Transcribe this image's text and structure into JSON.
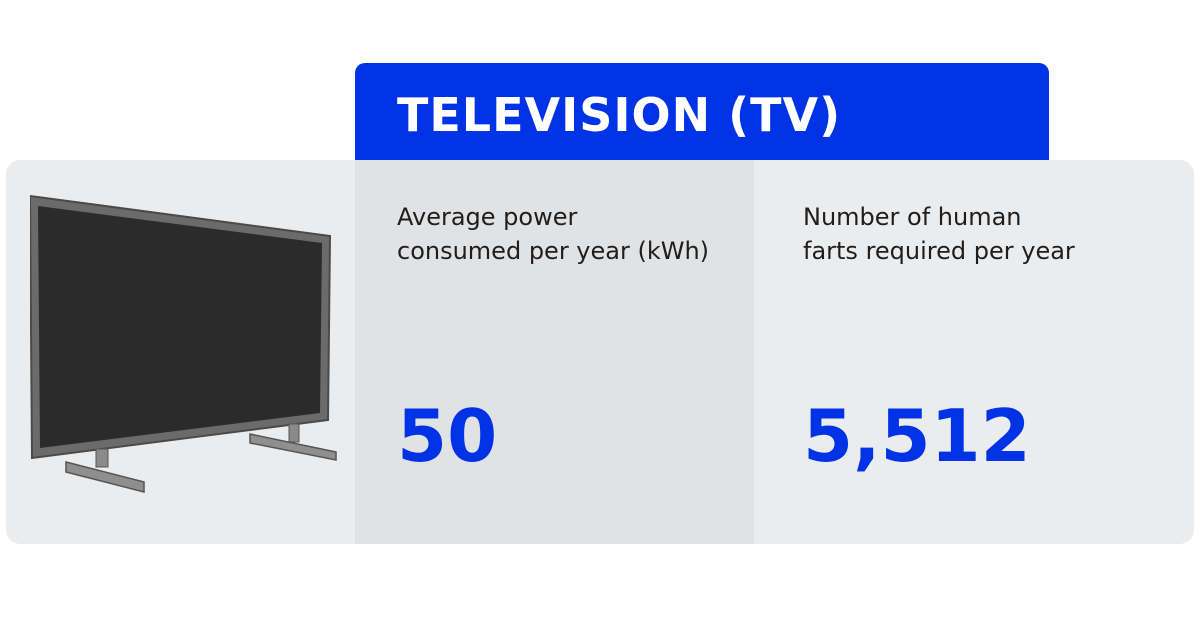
{
  "title": "TELEVISION (TV)",
  "illustration": {
    "icon": "television-icon"
  },
  "metrics": [
    {
      "label_line1": "Average power",
      "label_line2": "consumed per year (kWh)",
      "value": "50"
    },
    {
      "label_line1": "Number of human",
      "label_line2": "farts required per year",
      "value": "5,512"
    }
  ],
  "colors": {
    "accent": "#0033e6",
    "card_background": "#ebecee",
    "highlight_column": "#e1e2e4",
    "title_text": "#ffffff",
    "body_text": "#1e1e1e"
  }
}
